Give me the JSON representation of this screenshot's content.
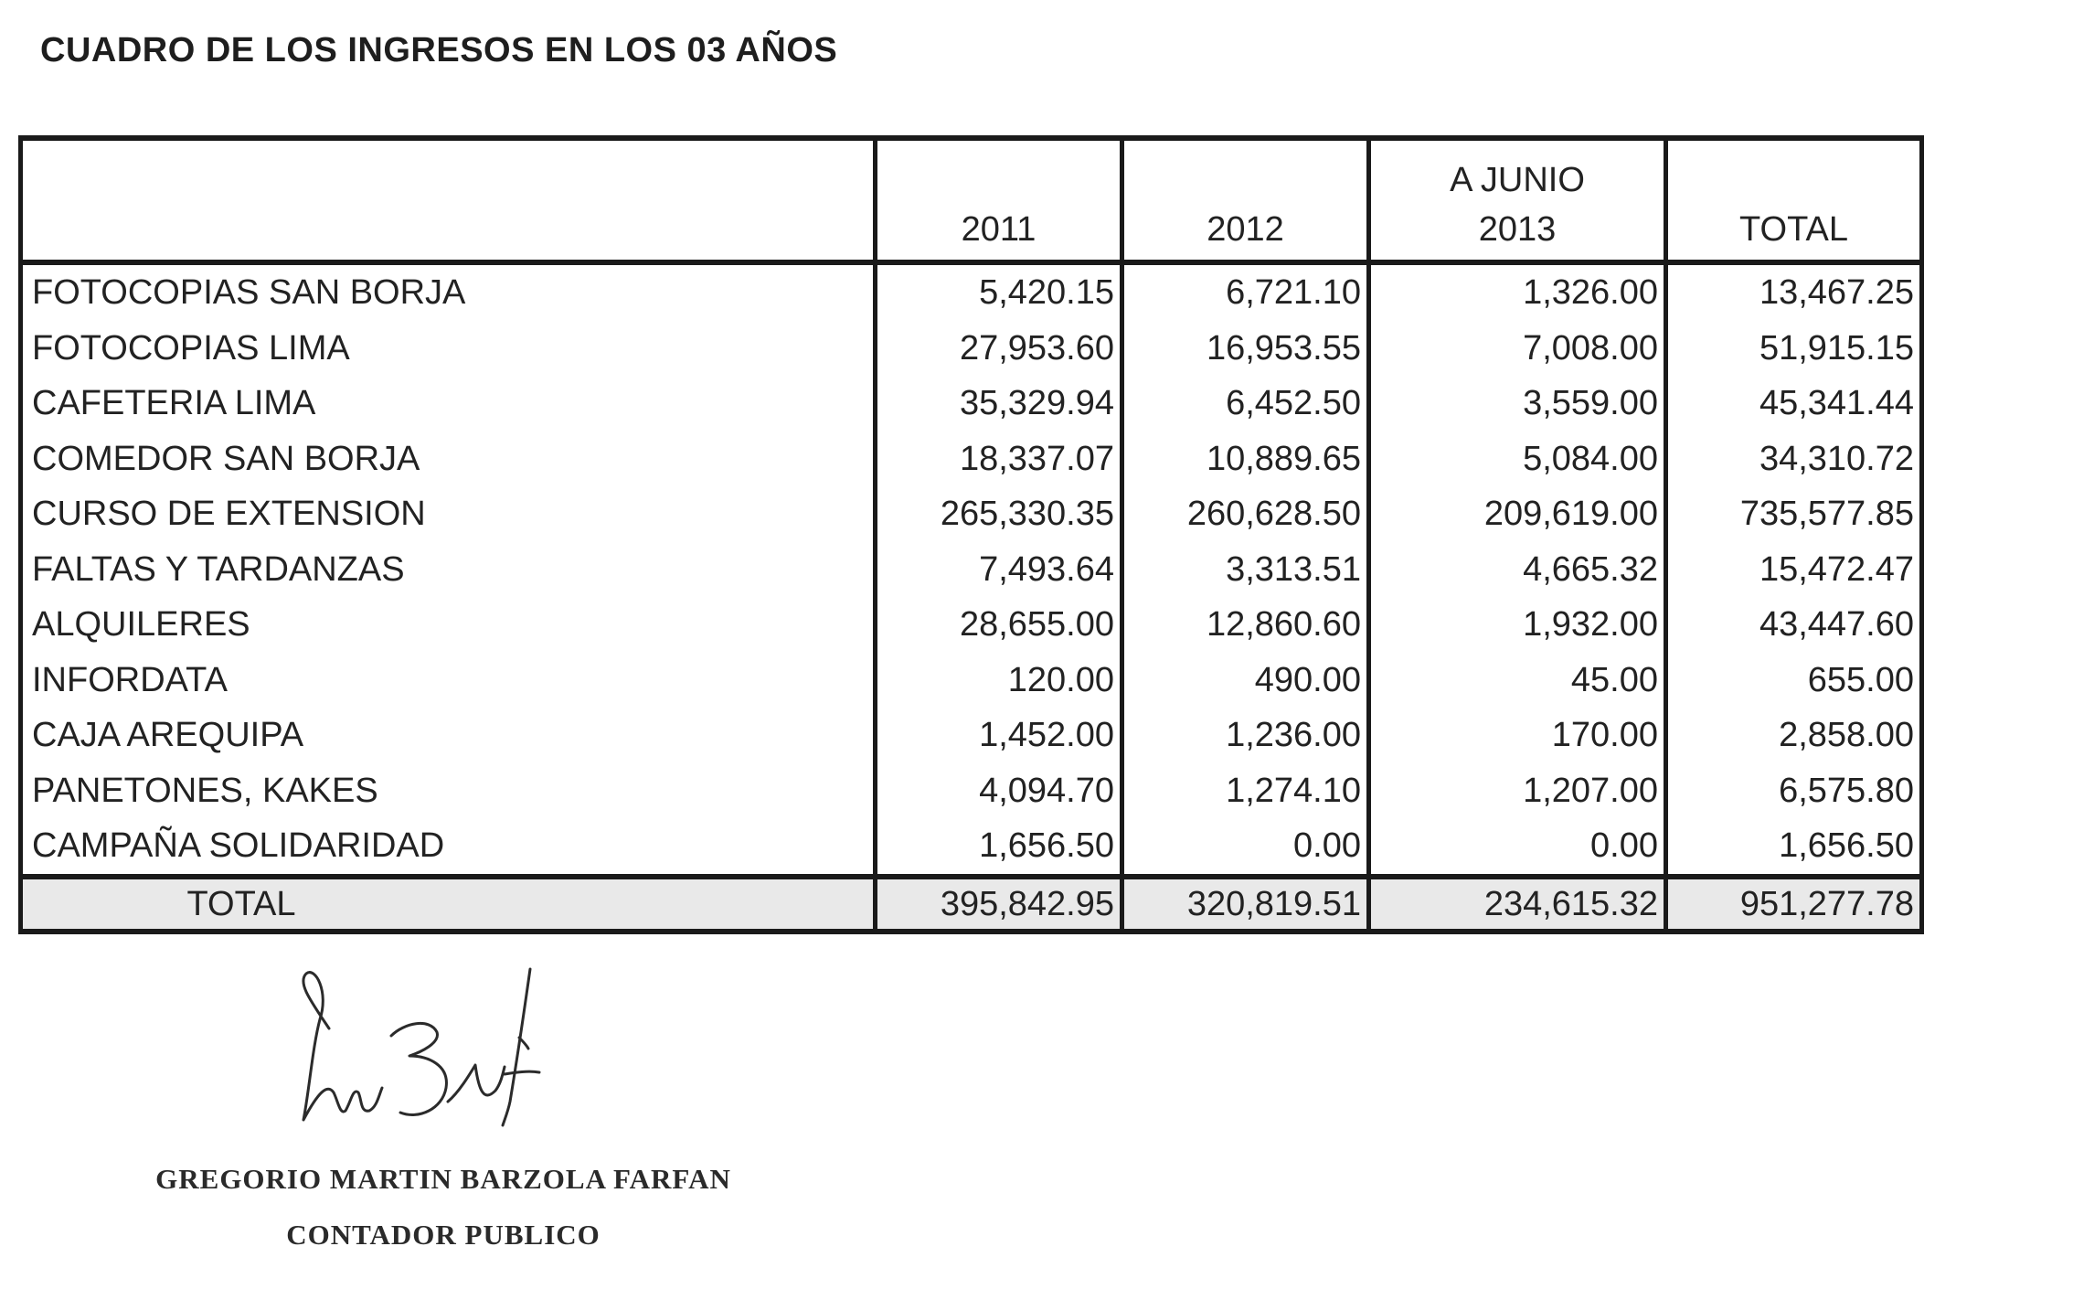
{
  "title": "CUADRO DE LOS INGRESOS EN LOS 03 AÑOS",
  "table": {
    "headers": [
      {
        "top": "",
        "bottom": ""
      },
      {
        "top": "",
        "bottom": "2011"
      },
      {
        "top": "",
        "bottom": "2012"
      },
      {
        "top": "A JUNIO",
        "bottom": "2013"
      },
      {
        "top": "",
        "bottom": "TOTAL"
      }
    ],
    "rows": [
      {
        "label": "FOTOCOPIAS SAN BORJA",
        "y2011": "5,420.15",
        "y2012": "6,721.10",
        "y2013": "1,326.00",
        "total": "13,467.25"
      },
      {
        "label": "FOTOCOPIAS LIMA",
        "y2011": "27,953.60",
        "y2012": "16,953.55",
        "y2013": "7,008.00",
        "total": "51,915.15"
      },
      {
        "label": "CAFETERIA LIMA",
        "y2011": "35,329.94",
        "y2012": "6,452.50",
        "y2013": "3,559.00",
        "total": "45,341.44"
      },
      {
        "label": "COMEDOR SAN BORJA",
        "y2011": "18,337.07",
        "y2012": "10,889.65",
        "y2013": "5,084.00",
        "total": "34,310.72"
      },
      {
        "label": "CURSO DE EXTENSION",
        "y2011": "265,330.35",
        "y2012": "260,628.50",
        "y2013": "209,619.00",
        "total": "735,577.85"
      },
      {
        "label": "FALTAS Y TARDANZAS",
        "y2011": "7,493.64",
        "y2012": "3,313.51",
        "y2013": "4,665.32",
        "total": "15,472.47"
      },
      {
        "label": "ALQUILERES",
        "y2011": "28,655.00",
        "y2012": "12,860.60",
        "y2013": "1,932.00",
        "total": "43,447.60"
      },
      {
        "label": "INFORDATA",
        "y2011": "120.00",
        "y2012": "490.00",
        "y2013": "45.00",
        "total": "655.00"
      },
      {
        "label": "CAJA AREQUIPA",
        "y2011": "1,452.00",
        "y2012": "1,236.00",
        "y2013": "170.00",
        "total": "2,858.00"
      },
      {
        "label": "PANETONES, KAKES",
        "y2011": "4,094.70",
        "y2012": "1,274.10",
        "y2013": "1,207.00",
        "total": "6,575.80"
      },
      {
        "label": "CAMPAÑA SOLIDARIDAD",
        "y2011": "1,656.50",
        "y2012": "0.00",
        "y2013": "0.00",
        "total": "1,656.50"
      }
    ],
    "footer": {
      "label": "TOTAL",
      "y2011": "395,842.95",
      "y2012": "320,819.51",
      "y2013": "234,615.32",
      "total": "951,277.78"
    }
  },
  "signatory": {
    "name": "GREGORIO MARTIN BARZOLA FARFAN",
    "role": "CONTADOR PUBLICO"
  }
}
